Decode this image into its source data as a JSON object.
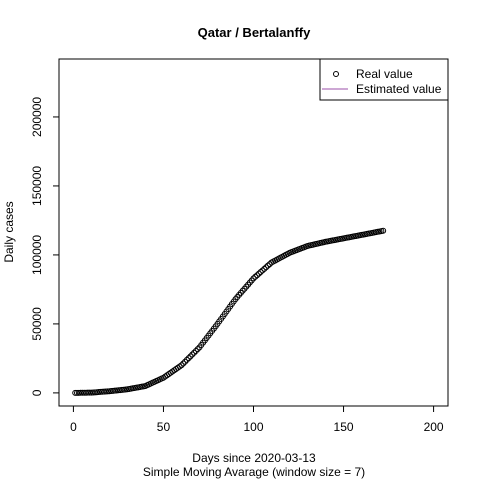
{
  "chart_data": {
    "type": "scatter",
    "title": "Qatar / Bertalanffy",
    "xlabel": "Days since 2020-03-13",
    "subtitle": "Simple Moving Avarage (window size = 7)",
    "ylabel": "Daily cases",
    "xlim": [
      -8,
      208
    ],
    "ylim": [
      -9500,
      242000
    ],
    "x_ticks": [
      0,
      50,
      100,
      150,
      200
    ],
    "y_ticks": [
      0,
      50000,
      100000,
      150000,
      200000
    ],
    "grid": false,
    "legend": {
      "position": "top-right",
      "entries": [
        {
          "label": "Real value",
          "marker": "open-circle",
          "color": "#000000"
        },
        {
          "label": "Estimated value",
          "marker": "line",
          "color": "#9b4fa8"
        }
      ]
    },
    "real_value_anchors": {
      "x": [
        1,
        10,
        20,
        30,
        40,
        50,
        60,
        70,
        80,
        90,
        100,
        110,
        120,
        130,
        140,
        150,
        160,
        172
      ],
      "y": [
        0,
        200,
        1200,
        2600,
        5000,
        11000,
        20000,
        33000,
        50000,
        68000,
        83000,
        94500,
        101500,
        106500,
        109500,
        112000,
        114500,
        117500
      ]
    }
  }
}
